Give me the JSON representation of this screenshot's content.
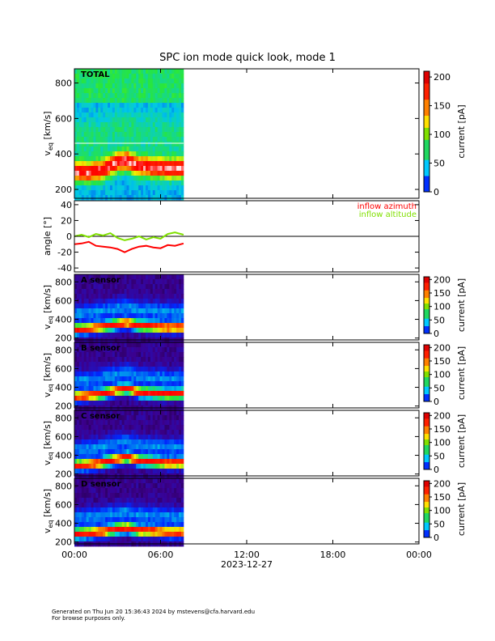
{
  "chart_data": {
    "type": "heatmap",
    "title": "SPC ion mode quick look, mode 1",
    "x_axis": {
      "range_hours": [
        0,
        24
      ],
      "ticks": [
        0,
        6,
        12,
        18,
        24
      ],
      "tick_labels": [
        "00:00",
        "06:00",
        "12:00",
        "18:00",
        "00:00"
      ],
      "date_label": "2023-12-27",
      "data_end_hours": 7.6
    },
    "panels": [
      {
        "id": "total",
        "type": "heatmap",
        "label": "TOTAL",
        "ylabel_main": "v",
        "ylabel_sub": "eq",
        "ylabel_unit": " [km/s]",
        "ylim": [
          150,
          880
        ],
        "yticks": [
          200,
          400,
          600,
          800
        ],
        "colorbar": {
          "label": "current [pA]",
          "range": [
            0,
            210
          ],
          "ticks": [
            0,
            50,
            100,
            150,
            200
          ]
        },
        "white_line_kms": 460,
        "peak_kms_at_time": [
          [
            0,
            300
          ],
          [
            1,
            295
          ],
          [
            2,
            310
          ],
          [
            3,
            355
          ],
          [
            3.7,
            360
          ],
          [
            4.5,
            330
          ],
          [
            5.5,
            325
          ],
          [
            6.5,
            315
          ],
          [
            7.6,
            320
          ]
        ]
      },
      {
        "id": "angle",
        "type": "line",
        "ylabel": "angle [°]",
        "ylim": [
          -45,
          45
        ],
        "yticks": [
          40,
          20,
          0,
          -20,
          -40
        ],
        "series": [
          {
            "name": "inflow azimuth",
            "color": "#ff0000",
            "x_hours": [
              0,
              0.5,
              1,
              1.5,
              2,
              2.5,
              3,
              3.5,
              4,
              4.5,
              5,
              5.5,
              6,
              6.5,
              7,
              7.6
            ],
            "values": [
              -10,
              -9,
              -7,
              -12,
              -13,
              -14,
              -16,
              -20,
              -16,
              -13,
              -12,
              -14,
              -15,
              -11,
              -12,
              -9
            ]
          },
          {
            "name": "inflow altitude",
            "color": "#80e000",
            "x_hours": [
              0,
              0.5,
              1,
              1.5,
              2,
              2.5,
              3,
              3.5,
              4,
              4.5,
              5,
              5.5,
              6,
              6.5,
              7,
              7.6
            ],
            "values": [
              0,
              2,
              -1,
              3,
              1,
              4,
              -2,
              -5,
              -3,
              0,
              -4,
              -1,
              -3,
              3,
              5,
              2
            ]
          }
        ]
      },
      {
        "id": "a_sensor",
        "type": "heatmap",
        "label": "A sensor",
        "ylabel_main": "v",
        "ylabel_sub": "eq",
        "ylabel_unit": " [km/s]",
        "ylim": [
          180,
          880
        ],
        "yticks": [
          200,
          400,
          600,
          800
        ],
        "colorbar": {
          "label": "current [pA]",
          "range": [
            0,
            210
          ],
          "ticks": [
            0,
            50,
            100,
            150,
            200
          ]
        },
        "peak_kms_at_time": [
          [
            0,
            290
          ],
          [
            1,
            300
          ],
          [
            2,
            320
          ],
          [
            3,
            345
          ],
          [
            3.7,
            365
          ],
          [
            4.5,
            330
          ],
          [
            5.5,
            320
          ],
          [
            6.5,
            310
          ],
          [
            7.6,
            315
          ]
        ]
      },
      {
        "id": "b_sensor",
        "type": "heatmap",
        "label": "B sensor",
        "ylabel_main": "v",
        "ylabel_sub": "eq",
        "ylabel_unit": " [km/s]",
        "ylim": [
          180,
          880
        ],
        "yticks": [
          200,
          400,
          600,
          800
        ],
        "colorbar": {
          "label": "current [pA]",
          "range": [
            0,
            210
          ],
          "ticks": [
            0,
            50,
            100,
            150,
            200
          ]
        },
        "peak_kms_at_time": [
          [
            0,
            300
          ],
          [
            1,
            310
          ],
          [
            2,
            330
          ],
          [
            3,
            370
          ],
          [
            3.7,
            385
          ],
          [
            4.5,
            345
          ],
          [
            5.5,
            335
          ],
          [
            6.5,
            325
          ],
          [
            7.6,
            330
          ]
        ]
      },
      {
        "id": "c_sensor",
        "type": "heatmap",
        "label": "C sensor",
        "ylabel_main": "v",
        "ylabel_sub": "eq",
        "ylabel_unit": " [km/s]",
        "ylim": [
          180,
          880
        ],
        "yticks": [
          200,
          400,
          600,
          800
        ],
        "colorbar": {
          "label": "current [pA]",
          "range": [
            0,
            210
          ],
          "ticks": [
            0,
            50,
            100,
            150,
            200
          ]
        },
        "peak_kms_at_time": [
          [
            0,
            290
          ],
          [
            1,
            300
          ],
          [
            2,
            320
          ],
          [
            3,
            360
          ],
          [
            3.7,
            380
          ],
          [
            4.5,
            340
          ],
          [
            5.5,
            330
          ],
          [
            6.5,
            315
          ],
          [
            7.6,
            320
          ]
        ]
      },
      {
        "id": "d_sensor",
        "type": "heatmap",
        "label": "D sensor",
        "ylabel_main": "v",
        "ylabel_sub": "eq",
        "ylabel_unit": " [km/s]",
        "ylim": [
          180,
          880
        ],
        "yticks": [
          200,
          400,
          600,
          800
        ],
        "colorbar": {
          "label": "current [pA]",
          "range": [
            0,
            210
          ],
          "ticks": [
            0,
            50,
            100,
            150,
            200
          ]
        },
        "peak_kms_at_time": [
          [
            0,
            285
          ],
          [
            1,
            295
          ],
          [
            2,
            310
          ],
          [
            3,
            340
          ],
          [
            3.7,
            350
          ],
          [
            4.5,
            320
          ],
          [
            5.5,
            315
          ],
          [
            6.5,
            300
          ],
          [
            7.6,
            305
          ]
        ]
      }
    ]
  },
  "footer": {
    "line1": "Generated on Thu Jun 20 15:36:43 2024 by mstevens@cfa.harvard.edu",
    "line2": "For browse purposes only."
  }
}
